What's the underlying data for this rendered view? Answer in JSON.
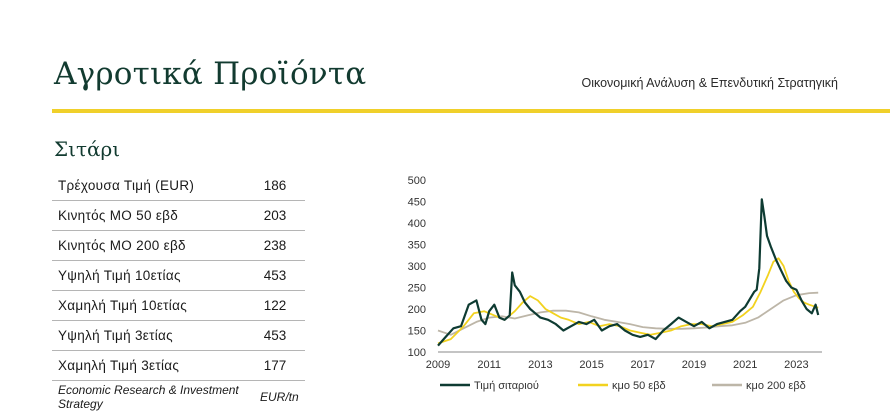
{
  "header": {
    "title": "Αγροτικά Προϊόντα",
    "subtitle": "Οικονομική Ανάλυση & Επενδυτική Στρατηγική"
  },
  "section": {
    "title": "Σιτάρι"
  },
  "stats": {
    "rows": [
      {
        "label": "Τρέχουσα Τιμή (EUR)",
        "value": "186"
      },
      {
        "label": "Κινητός ΜΟ 50 εβδ",
        "value": "203"
      },
      {
        "label": "Κινητός ΜΟ 200 εβδ",
        "value": "238"
      },
      {
        "label": "Υψηλή Τιμή 10ετίας",
        "value": "453"
      },
      {
        "label": "Χαμηλή Τιμή 10ετίας",
        "value": "122"
      },
      {
        "label": "Υψηλή Τιμή 3ετίας",
        "value": "453"
      },
      {
        "label": "Χαμηλή Τιμή 3ετίας",
        "value": "177"
      }
    ],
    "source": "Economic Research & Investment Strategy",
    "unit": "EUR/tn"
  },
  "colors": {
    "price": "#0e3b32",
    "ma50": "#f2d21f",
    "ma200": "#bdb6a8",
    "accent": "#f0d02a"
  },
  "chart_data": {
    "type": "line",
    "title": "",
    "xlabel": "",
    "ylabel": "",
    "xlim": [
      2009,
      2024
    ],
    "ylim": [
      100,
      500
    ],
    "yticks": [
      100,
      150,
      200,
      250,
      300,
      350,
      400,
      450,
      500
    ],
    "xticks": [
      2009,
      2011,
      2013,
      2015,
      2017,
      2019,
      2021,
      2023
    ],
    "grid": false,
    "legend": "bottom",
    "series": [
      {
        "name": "Τιμή σιταριού",
        "color": "#0e3b32",
        "x": [
          2009.0,
          2009.3,
          2009.6,
          2009.9,
          2010.2,
          2010.5,
          2010.7,
          2010.85,
          2011.0,
          2011.2,
          2011.4,
          2011.6,
          2011.8,
          2011.9,
          2012.0,
          2012.2,
          2012.4,
          2012.6,
          2012.8,
          2013.0,
          2013.3,
          2013.6,
          2013.9,
          2014.2,
          2014.5,
          2014.8,
          2015.1,
          2015.4,
          2015.7,
          2016.0,
          2016.3,
          2016.6,
          2016.9,
          2017.2,
          2017.5,
          2017.8,
          2018.1,
          2018.4,
          2018.7,
          2019.0,
          2019.3,
          2019.6,
          2019.9,
          2020.2,
          2020.5,
          2020.8,
          2021.0,
          2021.2,
          2021.35,
          2021.45,
          2021.55,
          2021.65,
          2021.75,
          2021.85,
          2022.0,
          2022.2,
          2022.4,
          2022.6,
          2022.8,
          2023.0,
          2023.2,
          2023.4,
          2023.6,
          2023.75,
          2023.85
        ],
        "y": [
          115,
          135,
          155,
          160,
          210,
          220,
          175,
          165,
          195,
          210,
          180,
          175,
          185,
          285,
          255,
          240,
          215,
          200,
          190,
          180,
          175,
          165,
          150,
          160,
          170,
          165,
          175,
          150,
          160,
          165,
          150,
          140,
          135,
          140,
          130,
          150,
          165,
          180,
          170,
          160,
          170,
          155,
          165,
          170,
          175,
          195,
          205,
          225,
          240,
          245,
          295,
          455,
          415,
          370,
          345,
          315,
          290,
          265,
          250,
          245,
          220,
          200,
          190,
          210,
          186
        ]
      },
      {
        "name": "κμο 50 εβδ",
        "color": "#f2d21f",
        "x": [
          2009.0,
          2009.5,
          2010.0,
          2010.4,
          2010.8,
          2011.2,
          2011.6,
          2012.0,
          2012.3,
          2012.6,
          2012.9,
          2013.2,
          2013.5,
          2013.8,
          2014.1,
          2014.5,
          2014.9,
          2015.3,
          2015.7,
          2016.1,
          2016.5,
          2016.9,
          2017.3,
          2017.7,
          2018.1,
          2018.5,
          2018.9,
          2019.3,
          2019.7,
          2020.1,
          2020.5,
          2020.9,
          2021.3,
          2021.6,
          2021.9,
          2022.1,
          2022.3,
          2022.5,
          2022.7,
          2022.9,
          2023.1,
          2023.3,
          2023.5,
          2023.85
        ],
        "y": [
          120,
          130,
          160,
          190,
          195,
          185,
          175,
          195,
          215,
          230,
          220,
          200,
          190,
          180,
          175,
          165,
          170,
          160,
          165,
          160,
          150,
          145,
          140,
          145,
          150,
          160,
          165,
          165,
          160,
          165,
          170,
          185,
          205,
          240,
          280,
          310,
          318,
          300,
          265,
          240,
          225,
          215,
          210,
          203
        ]
      },
      {
        "name": "κμο 200 εβδ",
        "color": "#bdb6a8",
        "x": [
          2009.0,
          2009.5,
          2010.0,
          2010.5,
          2011.0,
          2011.5,
          2012.0,
          2012.5,
          2013.0,
          2013.5,
          2014.0,
          2014.5,
          2015.0,
          2015.5,
          2016.0,
          2016.5,
          2017.0,
          2017.5,
          2018.0,
          2018.5,
          2019.0,
          2019.5,
          2020.0,
          2020.5,
          2021.0,
          2021.5,
          2022.0,
          2022.5,
          2023.0,
          2023.5,
          2023.85
        ],
        "y": [
          150,
          140,
          155,
          170,
          180,
          183,
          178,
          185,
          192,
          196,
          196,
          192,
          183,
          175,
          170,
          165,
          158,
          155,
          154,
          154,
          155,
          157,
          160,
          162,
          168,
          180,
          200,
          220,
          232,
          237,
          238
        ]
      }
    ]
  }
}
